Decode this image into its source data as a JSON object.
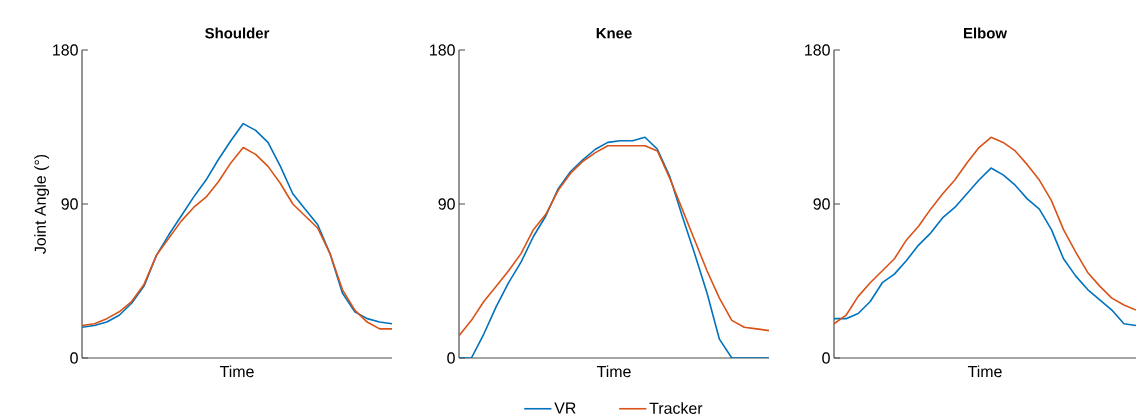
{
  "chart_data": [
    {
      "type": "line",
      "title": "Shoulder",
      "xlabel": "Time",
      "ylabel": "Joint Angle (°)",
      "categories": [
        null,
        null,
        null,
        null,
        null,
        null,
        null,
        null,
        null,
        null,
        null,
        null,
        null,
        null,
        null,
        null,
        null,
        null,
        null,
        null,
        null,
        null,
        null,
        null,
        null,
        null
      ],
      "ylim": [
        0,
        180
      ],
      "yticks": [
        0,
        90,
        180
      ],
      "grid": false,
      "legend": false,
      "marker": "none",
      "series": [
        {
          "color": "#0072bd",
          "values": [
            18,
            19,
            21,
            25,
            32,
            42,
            60,
            72,
            83,
            94,
            104,
            116,
            127,
            137,
            133,
            126,
            112,
            96,
            87,
            78,
            61,
            38,
            27,
            23,
            21,
            20
          ]
        },
        {
          "color": "#d95319",
          "values": [
            19,
            20,
            23,
            27,
            33,
            43,
            60,
            70,
            80,
            88,
            94,
            103,
            114,
            123,
            119,
            112,
            102,
            90,
            83,
            76,
            61,
            40,
            28,
            21,
            17,
            17
          ]
        }
      ]
    },
    {
      "type": "line",
      "title": "Knee",
      "xlabel": "Time",
      "categories": [
        null,
        null,
        null,
        null,
        null,
        null,
        null,
        null,
        null,
        null,
        null,
        null,
        null,
        null,
        null,
        null,
        null,
        null,
        null,
        null,
        null,
        null,
        null,
        null,
        null,
        null
      ],
      "ylim": [
        0,
        180
      ],
      "yticks": [
        0,
        90,
        180
      ],
      "grid": false,
      "legend": "bottom",
      "marker": "none",
      "series": [
        {
          "name": "VR",
          "color": "#0072bd",
          "values": [
            0,
            0,
            14,
            30,
            44,
            56,
            71,
            83,
            99,
            109,
            116,
            122,
            126,
            127,
            127,
            129,
            122,
            106,
            83,
            61,
            38,
            11,
            0,
            0,
            0,
            0
          ]
        },
        {
          "name": "Tracker",
          "color": "#d95319",
          "values": [
            13,
            22,
            33,
            42,
            51,
            61,
            75,
            84,
            98,
            108,
            115,
            120,
            124,
            124,
            124,
            124,
            121,
            105,
            87,
            69,
            51,
            35,
            22,
            18,
            17,
            16
          ]
        }
      ]
    },
    {
      "type": "line",
      "title": "Elbow",
      "xlabel": "Time",
      "categories": [
        null,
        null,
        null,
        null,
        null,
        null,
        null,
        null,
        null,
        null,
        null,
        null,
        null,
        null,
        null,
        null,
        null,
        null,
        null,
        null,
        null,
        null,
        null,
        null,
        null,
        null
      ],
      "ylim": [
        0,
        180
      ],
      "yticks": [
        0,
        90,
        180
      ],
      "grid": false,
      "legend": false,
      "marker": "none",
      "series": [
        {
          "color": "#0072bd",
          "values": [
            23,
            23,
            26,
            33,
            44,
            49,
            57,
            66,
            73,
            82,
            88,
            96,
            104,
            111,
            107,
            101,
            93,
            87,
            75,
            58,
            48,
            40,
            34,
            28,
            20,
            19
          ]
        },
        {
          "color": "#d95319",
          "values": [
            20,
            25,
            36,
            44,
            51,
            58,
            69,
            77,
            87,
            96,
            104,
            114,
            123,
            129,
            126,
            121,
            113,
            104,
            92,
            75,
            62,
            50,
            42,
            35,
            31,
            28
          ]
        }
      ]
    }
  ]
}
